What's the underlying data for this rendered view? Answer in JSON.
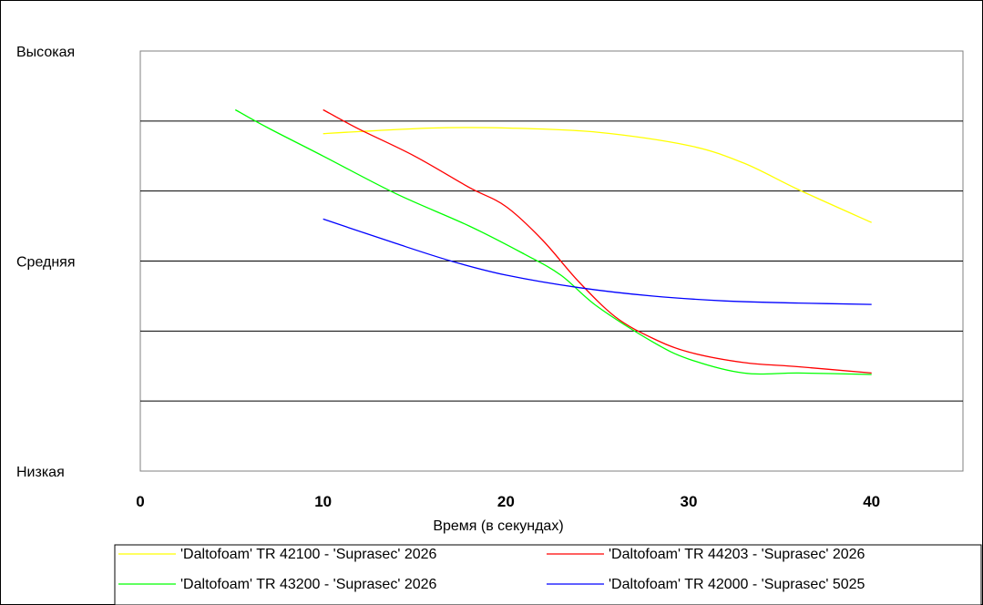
{
  "chart_data": {
    "type": "line",
    "title": "",
    "xlabel": "Время (в секундах)",
    "ylabel": "",
    "xlim": [
      0,
      45
    ],
    "ylim": [
      0,
      6
    ],
    "x_ticks": [
      "0",
      "10",
      "20",
      "30",
      "40"
    ],
    "y_tick_labels": [
      {
        "value": 6,
        "label": "Высокая"
      },
      {
        "value": 3,
        "label": "Средняя"
      },
      {
        "value": 0,
        "label": "Низкая"
      }
    ],
    "gridlines_y": [
      1,
      2,
      3,
      4,
      5
    ],
    "legend_position": "bottom",
    "series": [
      {
        "name": "'Daltofoam' TR 42100 - 'Suprasec' 2026",
        "color": "#ffff00",
        "points": [
          [
            10,
            4.82
          ],
          [
            12,
            4.85
          ],
          [
            16,
            4.9
          ],
          [
            20,
            4.9
          ],
          [
            25,
            4.84
          ],
          [
            30,
            4.65
          ],
          [
            33,
            4.4
          ],
          [
            36,
            4.02
          ],
          [
            40,
            3.55
          ]
        ]
      },
      {
        "name": "'Daltofoam' TR 44203 - 'Suprasec' 2026",
        "color": "#ff0000",
        "points": [
          [
            10,
            5.16
          ],
          [
            12,
            4.88
          ],
          [
            15,
            4.5
          ],
          [
            18,
            4.05
          ],
          [
            20,
            3.78
          ],
          [
            22,
            3.3
          ],
          [
            24,
            2.7
          ],
          [
            26,
            2.2
          ],
          [
            28,
            1.9
          ],
          [
            30,
            1.7
          ],
          [
            33,
            1.55
          ],
          [
            36,
            1.49
          ],
          [
            40,
            1.4
          ]
        ]
      },
      {
        "name": "'Daltofoam' TR 43200 - 'Suprasec' 2026",
        "color": "#00ff00",
        "points": [
          [
            5.2,
            5.16
          ],
          [
            7,
            4.9
          ],
          [
            10,
            4.5
          ],
          [
            14,
            3.96
          ],
          [
            18,
            3.5
          ],
          [
            21,
            3.1
          ],
          [
            23,
            2.8
          ],
          [
            25,
            2.35
          ],
          [
            28,
            1.85
          ],
          [
            30,
            1.6
          ],
          [
            33,
            1.4
          ],
          [
            36,
            1.4
          ],
          [
            40,
            1.38
          ]
        ]
      },
      {
        "name": "'Daltofoam' TR 42000 - 'Suprasec' 5025",
        "color": "#0000ff",
        "points": [
          [
            10,
            3.6
          ],
          [
            14,
            3.25
          ],
          [
            17,
            3.0
          ],
          [
            20,
            2.8
          ],
          [
            24,
            2.62
          ],
          [
            28,
            2.5
          ],
          [
            32,
            2.43
          ],
          [
            36,
            2.4
          ],
          [
            40,
            2.38
          ]
        ]
      }
    ]
  }
}
